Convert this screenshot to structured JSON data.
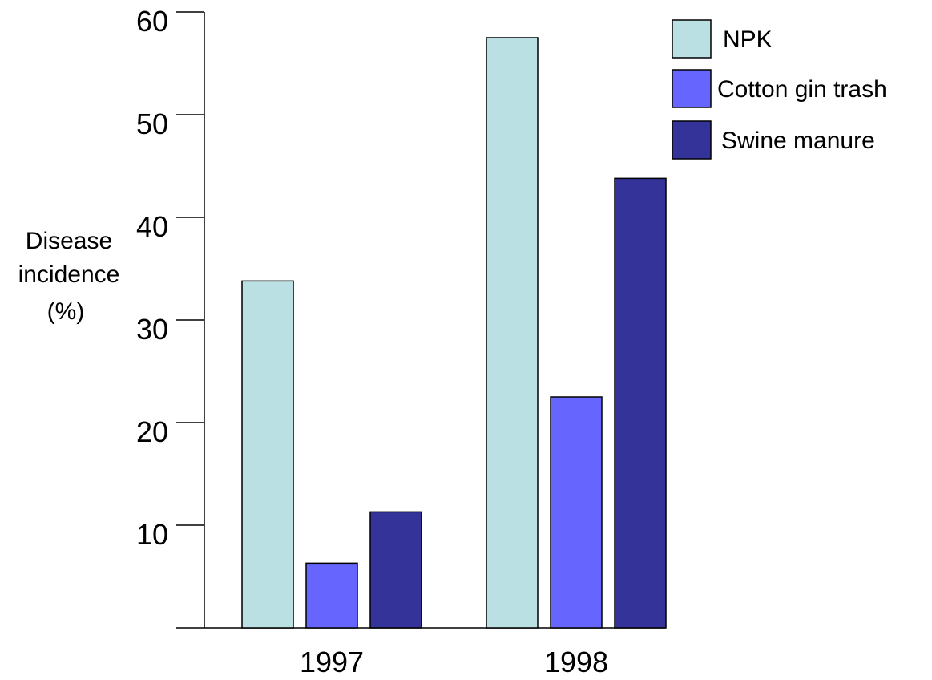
{
  "chart_data": {
    "type": "bar",
    "categories": [
      "1997",
      "1998"
    ],
    "series": [
      {
        "name": "NPK",
        "values": [
          33.8,
          57.5
        ],
        "color": "#BBE0E3"
      },
      {
        "name": "Cotton gin trash",
        "values": [
          6.3,
          22.5
        ],
        "color": "#6666FF"
      },
      {
        "name": "Swine manure",
        "values": [
          11.3,
          43.8
        ],
        "color": "#333399"
      }
    ],
    "ylabel_lines": [
      "Disease",
      "incidence",
      "(%)"
    ],
    "yticks": [
      10,
      20,
      30,
      40,
      50,
      60
    ],
    "ylim": [
      0,
      60
    ],
    "legend_position": "top-right",
    "grid": false
  }
}
